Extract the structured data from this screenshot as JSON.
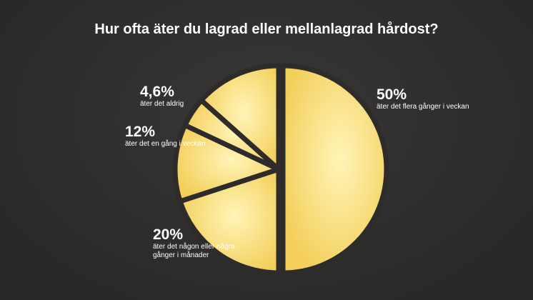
{
  "chart_data": {
    "type": "pie",
    "title": "Hur ofta äter du lagrad eller mellanlagrad hårdost?",
    "categories": [
      "äter det flera gånger i veckan",
      "äter det någon eller några gånger i månader",
      "äter det en gång i veckan",
      "äter det aldrig",
      null
    ],
    "values": [
      50,
      20,
      12,
      4.6,
      13.4
    ],
    "value_labels": [
      "50%",
      "20%",
      "12%",
      "4,6%",
      null
    ],
    "color": "#f3cf5a"
  }
}
